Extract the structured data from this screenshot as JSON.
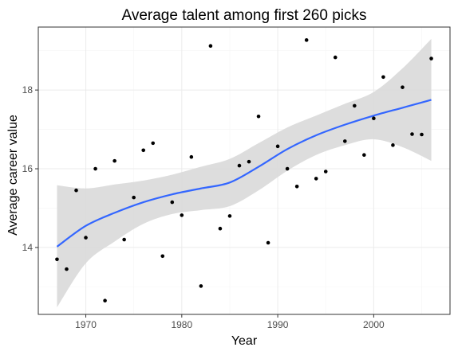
{
  "chart_data": {
    "type": "scatter",
    "title": "Average talent among first 260 picks",
    "xlabel": "Year",
    "ylabel": "Average career value",
    "xlim": [
      1965.05,
      2007.95
    ],
    "ylim": [
      12.3,
      19.6
    ],
    "x_ticks": [
      1970,
      1980,
      1990,
      2000
    ],
    "y_ticks": [
      14,
      16,
      18
    ],
    "grid": true,
    "legend": "none",
    "colors": {
      "points": "#000000",
      "smooth_line": "#3366ff",
      "ribbon": "#d9d9d9",
      "grid_major": "#ebebeb",
      "grid_minor": "#f5f5f5",
      "panel_border": "#333333"
    },
    "points": [
      {
        "x": 1967,
        "y": 13.7
      },
      {
        "x": 1968,
        "y": 13.45
      },
      {
        "x": 1969,
        "y": 15.45
      },
      {
        "x": 1970,
        "y": 14.25
      },
      {
        "x": 1971,
        "y": 16.0
      },
      {
        "x": 1972,
        "y": 12.65
      },
      {
        "x": 1973,
        "y": 16.2
      },
      {
        "x": 1974,
        "y": 14.2
      },
      {
        "x": 1975,
        "y": 15.27
      },
      {
        "x": 1976,
        "y": 16.47
      },
      {
        "x": 1977,
        "y": 16.65
      },
      {
        "x": 1978,
        "y": 13.78
      },
      {
        "x": 1979,
        "y": 15.15
      },
      {
        "x": 1980,
        "y": 14.82
      },
      {
        "x": 1981,
        "y": 16.3
      },
      {
        "x": 1982,
        "y": 13.02
      },
      {
        "x": 1983,
        "y": 19.12
      },
      {
        "x": 1984,
        "y": 14.48
      },
      {
        "x": 1985,
        "y": 14.8
      },
      {
        "x": 1986,
        "y": 16.08
      },
      {
        "x": 1987,
        "y": 16.18
      },
      {
        "x": 1988,
        "y": 17.33
      },
      {
        "x": 1989,
        "y": 14.12
      },
      {
        "x": 1990,
        "y": 16.57
      },
      {
        "x": 1991,
        "y": 16.0
      },
      {
        "x": 1992,
        "y": 15.55
      },
      {
        "x": 1993,
        "y": 19.27
      },
      {
        "x": 1994,
        "y": 15.75
      },
      {
        "x": 1995,
        "y": 15.93
      },
      {
        "x": 1996,
        "y": 18.83
      },
      {
        "x": 1997,
        "y": 16.7
      },
      {
        "x": 1998,
        "y": 17.6
      },
      {
        "x": 1999,
        "y": 16.35
      },
      {
        "x": 2000,
        "y": 17.28
      },
      {
        "x": 2001,
        "y": 18.33
      },
      {
        "x": 2002,
        "y": 16.6
      },
      {
        "x": 2003,
        "y": 18.07
      },
      {
        "x": 2004,
        "y": 16.88
      },
      {
        "x": 2005,
        "y": 16.87
      },
      {
        "x": 2006,
        "y": 18.8
      }
    ],
    "smooth": {
      "x": [
        1967,
        1970,
        1973,
        1976,
        1979,
        1982,
        1985,
        1988,
        1991,
        1994,
        1997,
        2000,
        2003,
        2006
      ],
      "y": [
        14.02,
        14.55,
        14.88,
        15.15,
        15.35,
        15.5,
        15.65,
        16.05,
        16.5,
        16.85,
        17.12,
        17.35,
        17.55,
        17.75
      ],
      "lower": [
        12.48,
        13.6,
        14.15,
        14.6,
        14.85,
        14.95,
        15.05,
        15.45,
        15.95,
        16.35,
        16.6,
        16.75,
        16.55,
        16.2
      ],
      "upper": [
        15.58,
        15.5,
        15.6,
        15.7,
        15.85,
        16.05,
        16.25,
        16.65,
        17.05,
        17.35,
        17.65,
        17.95,
        18.55,
        19.3
      ]
    }
  }
}
